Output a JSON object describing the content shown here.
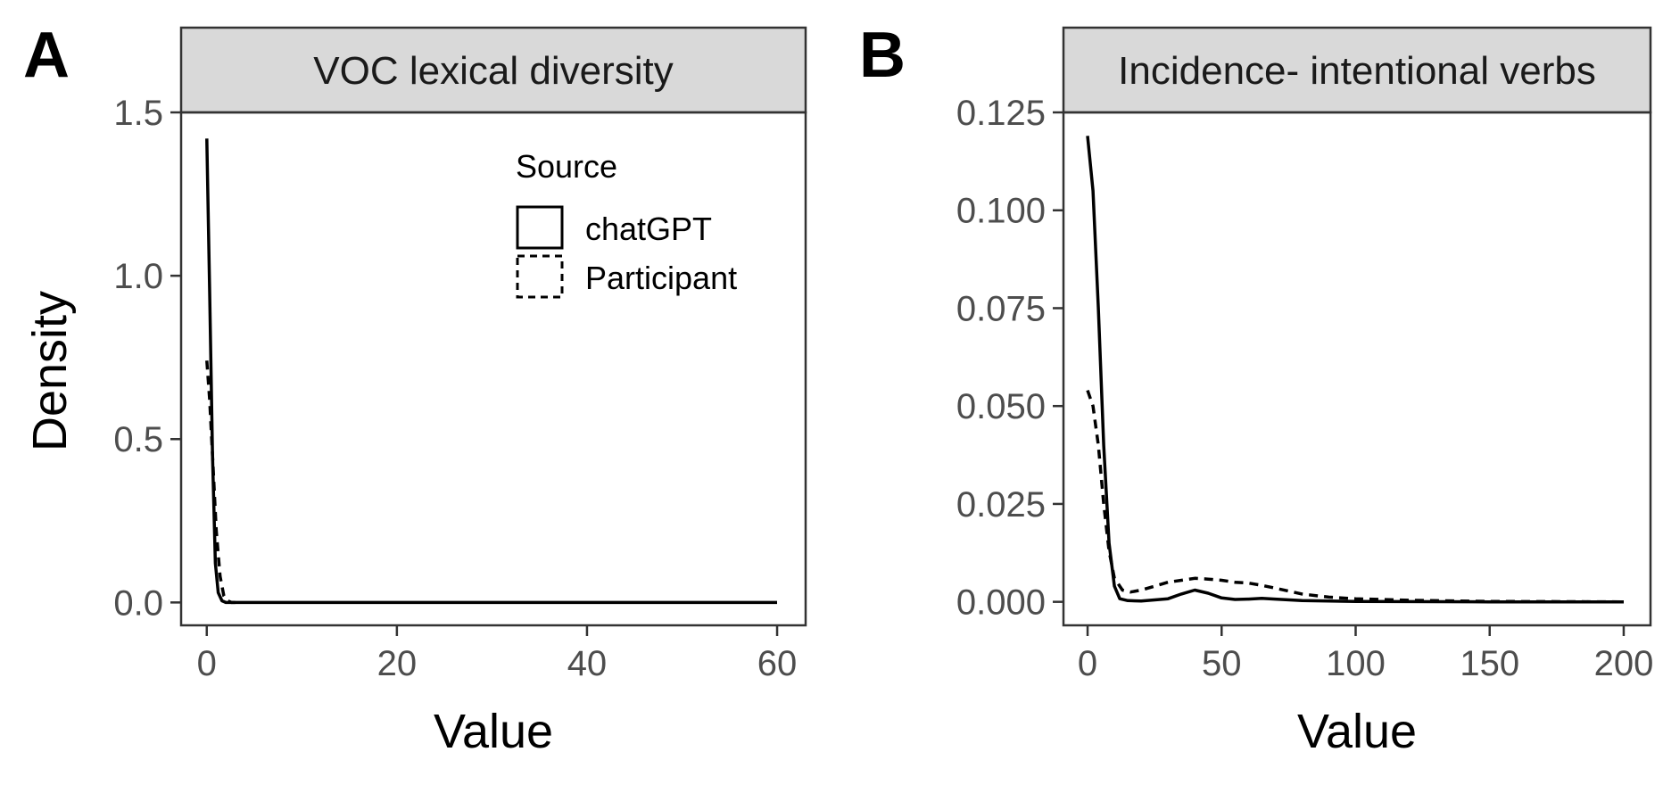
{
  "ylabel": "Density",
  "legend": {
    "title": "Source",
    "items": [
      {
        "label": "chatGPT",
        "linetype": "solid"
      },
      {
        "label": "Participant",
        "linetype": "dashed"
      }
    ]
  },
  "chart_data": [
    {
      "type": "line",
      "panel_letter": "A",
      "title": "VOC lexical diversity",
      "xlabel": "Value",
      "ylabel": "Density",
      "xlim": [
        -2.7,
        63
      ],
      "ylim": [
        -0.07,
        1.5
      ],
      "xticks": [
        0,
        20,
        40,
        60
      ],
      "xtick_labels": [
        "0",
        "20",
        "40",
        "60"
      ],
      "yticks": [
        0,
        0.5,
        1.0,
        1.5
      ],
      "ytick_labels": [
        "0.0",
        "0.5",
        "1.0",
        "1.5"
      ],
      "series": [
        {
          "name": "chatGPT",
          "linetype": "solid",
          "x": [
            0,
            0.3,
            0.6,
            0.9,
            1.2,
            1.6,
            2,
            5,
            10,
            20,
            30,
            40,
            50,
            60
          ],
          "y": [
            1.42,
            0.95,
            0.45,
            0.12,
            0.03,
            0.005,
            0,
            0,
            0,
            0,
            0,
            0,
            0,
            0
          ]
        },
        {
          "name": "Participant",
          "linetype": "dashed",
          "x": [
            0,
            0.3,
            0.6,
            1.0,
            1.4,
            1.8,
            2.2,
            2.6,
            3
          ],
          "y": [
            0.74,
            0.62,
            0.45,
            0.22,
            0.08,
            0.02,
            0.005,
            0,
            0
          ]
        }
      ]
    },
    {
      "type": "line",
      "panel_letter": "B",
      "title": "Incidence- intentional verbs",
      "xlabel": "Value",
      "ylabel": "",
      "xlim": [
        -9,
        210
      ],
      "ylim": [
        -0.006,
        0.125
      ],
      "xticks": [
        0,
        50,
        100,
        150,
        200
      ],
      "xtick_labels": [
        "0",
        "50",
        "100",
        "150",
        "200"
      ],
      "yticks": [
        0,
        0.025,
        0.05,
        0.075,
        0.1,
        0.125
      ],
      "ytick_labels": [
        "0.000",
        "0.025",
        "0.050",
        "0.075",
        "0.100",
        "0.125"
      ],
      "series": [
        {
          "name": "chatGPT",
          "linetype": "solid",
          "x": [
            0,
            2,
            4,
            6,
            8,
            10,
            12,
            15,
            20,
            30,
            35,
            40,
            45,
            50,
            55,
            60,
            65,
            70,
            80,
            100,
            150,
            200
          ],
          "y": [
            0.119,
            0.105,
            0.075,
            0.04,
            0.015,
            0.004,
            0.0008,
            0.0003,
            0.0002,
            0.0008,
            0.002,
            0.003,
            0.0022,
            0.001,
            0.0006,
            0.0007,
            0.0009,
            0.0007,
            0.0003,
            0.0001,
            0,
            0
          ]
        },
        {
          "name": "Participant",
          "linetype": "dashed",
          "x": [
            0,
            2,
            4,
            6,
            8,
            10,
            13,
            16,
            20,
            25,
            30,
            40,
            45,
            50,
            55,
            60,
            65,
            70,
            80,
            90,
            100,
            120,
            150,
            200
          ],
          "y": [
            0.054,
            0.05,
            0.04,
            0.025,
            0.013,
            0.006,
            0.003,
            0.0025,
            0.003,
            0.004,
            0.005,
            0.006,
            0.0058,
            0.0055,
            0.005,
            0.0048,
            0.0042,
            0.0035,
            0.002,
            0.0012,
            0.0008,
            0.0004,
            0.0001,
            0
          ]
        }
      ]
    }
  ]
}
